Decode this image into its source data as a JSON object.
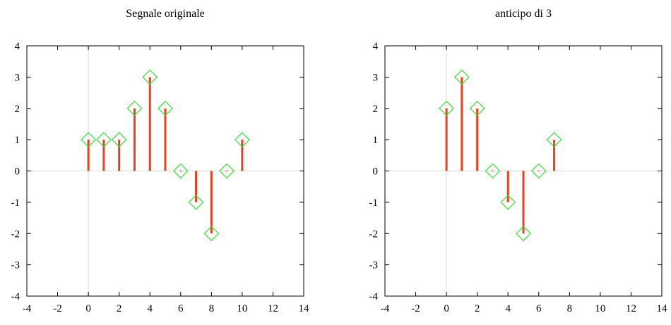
{
  "chart_data": [
    {
      "type": "stem",
      "title": "Segnale originale",
      "xlabel": "",
      "ylabel": "",
      "xlim": [
        -4,
        14
      ],
      "ylim": [
        -4,
        4
      ],
      "xticks": [
        -4,
        -2,
        0,
        2,
        4,
        6,
        8,
        10,
        12,
        14
      ],
      "yticks": [
        -4,
        -3,
        -2,
        -1,
        0,
        1,
        2,
        3,
        4
      ],
      "grid": false,
      "x": [
        0,
        1,
        2,
        3,
        4,
        5,
        6,
        7,
        8,
        9,
        10
      ],
      "y": [
        1,
        1,
        1,
        2,
        3,
        2,
        0,
        -1,
        -2,
        0,
        1
      ],
      "stem_color": "#e8401c",
      "marker_color": "#33dd33",
      "axis_line_color": "#d9d9d9"
    },
    {
      "type": "stem",
      "title": "anticipo di 3",
      "xlabel": "",
      "ylabel": "",
      "xlim": [
        -4,
        14
      ],
      "ylim": [
        -4,
        4
      ],
      "xticks": [
        -4,
        -2,
        0,
        2,
        4,
        6,
        8,
        10,
        12,
        14
      ],
      "yticks": [
        -4,
        -3,
        -2,
        -1,
        0,
        1,
        2,
        3,
        4
      ],
      "grid": false,
      "x": [
        0,
        1,
        2,
        3,
        4,
        5,
        6,
        7
      ],
      "y": [
        2,
        3,
        2,
        0,
        -1,
        -2,
        0,
        1
      ],
      "stem_color": "#e8401c",
      "marker_color": "#33dd33",
      "axis_line_color": "#d9d9d9"
    }
  ]
}
